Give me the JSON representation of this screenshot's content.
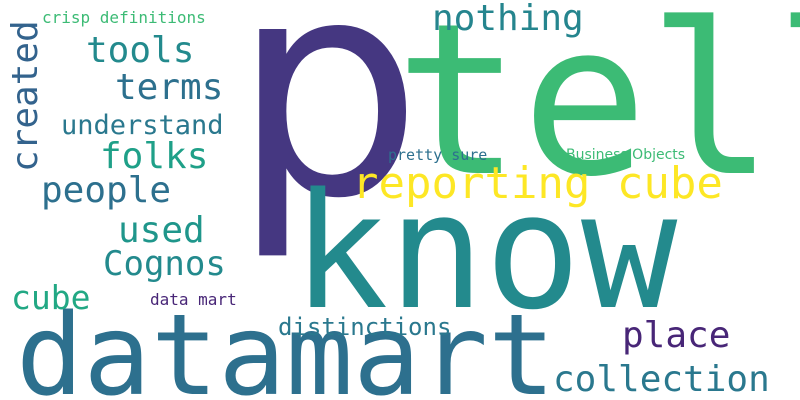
{
  "words": [
    {
      "text": "p",
      "color": "#453781"
    },
    {
      "text": "tell",
      "color": "#3cbb75"
    },
    {
      "text": "know",
      "color": "#238a8d"
    },
    {
      "text": "datamart",
      "color": "#2d708e"
    },
    {
      "text": "reporting cube",
      "color": "#fde725"
    },
    {
      "text": "nothing",
      "color": "#25858e"
    },
    {
      "text": "tools",
      "color": "#238a8d"
    },
    {
      "text": "terms",
      "color": "#2d708e"
    },
    {
      "text": "created",
      "color": "#33638d"
    },
    {
      "text": "understand",
      "color": "#2a788e"
    },
    {
      "text": "folks",
      "color": "#1fa088"
    },
    {
      "text": "people",
      "color": "#2d708e"
    },
    {
      "text": "used",
      "color": "#1f968b"
    },
    {
      "text": "Cognos",
      "color": "#238a8d"
    },
    {
      "text": "cube",
      "color": "#22a884"
    },
    {
      "text": "data mart",
      "color": "#482677"
    },
    {
      "text": "distinctions",
      "color": "#2a788e"
    },
    {
      "text": "place",
      "color": "#482677"
    },
    {
      "text": "collection",
      "color": "#2a788e"
    },
    {
      "text": "crisp definitions",
      "color": "#3cbb75"
    },
    {
      "text": "pretty sure",
      "color": "#2d708e"
    },
    {
      "text": "Business Objects",
      "color": "#3cbb75"
    }
  ]
}
